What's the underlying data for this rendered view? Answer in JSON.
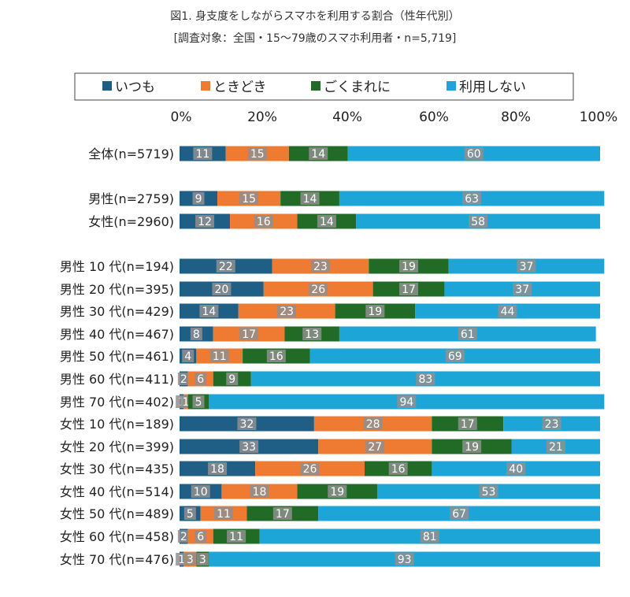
{
  "titles": {
    "main": "図1. 身支度をしながらスマホを利用する割合（性年代別）",
    "sub": "[調査対象：全国・15～79歳のスマホ利用者・n=5,719]"
  },
  "colors": {
    "いつも": "#1f5f85",
    "ときどき": "#ef7b33",
    "ごくまれに": "#216b26",
    "利用しない": "#1ea5d7",
    "label_box": "#8f8f8f"
  },
  "chart_data": {
    "type": "bar",
    "orientation": "horizontal",
    "stacked": true,
    "percent_stacked": true,
    "xlim": [
      0,
      100
    ],
    "x_ticks": [
      "0%",
      "20%",
      "40%",
      "60%",
      "80%",
      "100%"
    ],
    "legend": [
      "いつも",
      "ときどき",
      "ごくまれに",
      "利用しない"
    ],
    "legend_position": "top",
    "categories": [
      "全体(n=5719)",
      "男性(n=2759)",
      "女性(n=2960)",
      "男性 10 代(n=194)",
      "男性 20 代(n=395)",
      "男性 30 代(n=429)",
      "男性 40 代(n=467)",
      "男性 50 代(n=461)",
      "男性 60 代(n=411)",
      "男性 70 代(n=402)",
      "女性 10 代(n=189)",
      "女性 20 代(n=399)",
      "女性 30 代(n=435)",
      "女性 40 代(n=514)",
      "女性 50 代(n=489)",
      "女性 60 代(n=458)",
      "女性 70 代(n=476)"
    ],
    "series": [
      {
        "name": "いつも",
        "values": [
          11,
          9,
          12,
          22,
          20,
          14,
          8,
          4,
          2,
          1,
          32,
          33,
          18,
          10,
          5,
          2,
          1
        ]
      },
      {
        "name": "ときどき",
        "values": [
          15,
          15,
          16,
          23,
          26,
          23,
          17,
          11,
          6,
          1,
          28,
          27,
          26,
          18,
          11,
          6,
          3
        ]
      },
      {
        "name": "ごくまれに",
        "values": [
          14,
          14,
          14,
          19,
          17,
          19,
          13,
          16,
          9,
          5,
          17,
          19,
          16,
          19,
          17,
          11,
          3
        ]
      },
      {
        "name": "利用しない",
        "values": [
          60,
          63,
          58,
          37,
          37,
          44,
          61,
          69,
          83,
          94,
          23,
          21,
          40,
          53,
          67,
          81,
          93
        ]
      }
    ]
  }
}
